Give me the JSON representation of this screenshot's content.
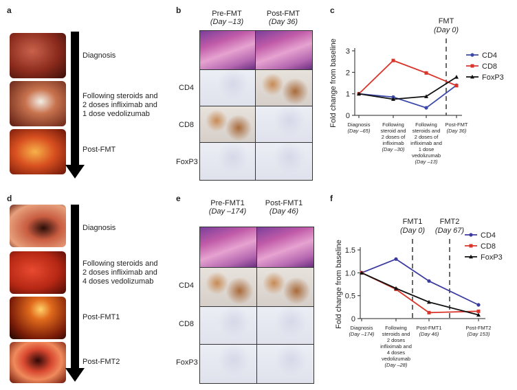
{
  "panels": {
    "a": "a",
    "b": "b",
    "c": "c",
    "d": "d",
    "e": "e",
    "f": "f"
  },
  "panel_a": {
    "labels": [
      "Diagnosis",
      "Following steroids and\n2 doses infliximab and\n1 dose vedolizumab",
      "Post-FMT"
    ]
  },
  "panel_d": {
    "labels": [
      "Diagnosis",
      "Following steroids and\n2 doses infliximab and\n4 doses vedolizumab",
      "Post-FMT1",
      "Post-FMT2"
    ]
  },
  "panel_b": {
    "col1": "Pre-FMT",
    "col1_day": "(Day –13)",
    "col2": "Post-FMT",
    "col2_day": "(Day 36)",
    "rows": [
      "CD4",
      "CD8",
      "FoxP3"
    ]
  },
  "panel_e": {
    "col1": "Pre-FMT1",
    "col1_day": "(Day –174)",
    "col2": "Post-FMT1",
    "col2_day": "(Day 46)",
    "rows": [
      "CD4",
      "CD8",
      "FoxP3"
    ]
  },
  "chart_data": [
    {
      "type": "line",
      "panel": "c",
      "ylabel": "Fold change from baseline",
      "ylim": [
        0,
        3
      ],
      "yticks": [
        "0",
        "1",
        "2",
        "3"
      ],
      "x_labels": [
        {
          "text": [
            "Diagnosis"
          ],
          "day": "(Day –65)"
        },
        {
          "text": [
            "Following",
            "steroid and",
            "2 doses of",
            "infliximab"
          ],
          "day": "(Day –30)"
        },
        {
          "text": [
            "Following",
            "steroids and",
            "2 doses of",
            "infliximab and",
            "1 dose",
            "vedolizumab"
          ],
          "day": "(Day –13)"
        },
        {
          "text": [
            "Post-FMT"
          ],
          "day": "(Day 36)"
        }
      ],
      "events": [
        {
          "label": "FMT",
          "day": "(Day 0)"
        }
      ],
      "series": [
        {
          "name": "CD4",
          "color": "#3b4aa8",
          "marker": "circle",
          "values": [
            1.0,
            0.85,
            0.35,
            1.4
          ]
        },
        {
          "name": "CD8",
          "color": "#d9352b",
          "marker": "square",
          "values": [
            1.0,
            2.55,
            1.97,
            1.38
          ]
        },
        {
          "name": "FoxP3",
          "color": "#111111",
          "marker": "triangle",
          "values": [
            1.0,
            0.75,
            0.88,
            1.78
          ]
        }
      ]
    },
    {
      "type": "line",
      "panel": "f",
      "ylabel": "Fold change from baseline",
      "ylim": [
        0,
        1.5
      ],
      "yticks": [
        "0",
        "0.5",
        "1.0",
        "1.5"
      ],
      "x_labels": [
        {
          "text": [
            "Diagnosis"
          ],
          "day": "(Day –174)"
        },
        {
          "text": [
            "Following",
            "steroids and",
            "2 doses",
            "infliximab and",
            "4 doses",
            "vedolizumab"
          ],
          "day": "(Day –28)"
        },
        {
          "text": [
            "Post-FMT1"
          ],
          "day": "(Day 46)"
        },
        {
          "text": [
            "Post-FMT2"
          ],
          "day": "(Day 153)"
        }
      ],
      "events": [
        {
          "label": "FMT1",
          "day": "(Day 0)"
        },
        {
          "label": "FMT2",
          "day": "(Day 67)"
        }
      ],
      "series": [
        {
          "name": "CD4",
          "color": "#3b3a9e",
          "marker": "circle",
          "values": [
            1.0,
            1.3,
            0.82,
            0.3
          ]
        },
        {
          "name": "CD8",
          "color": "#d9352b",
          "marker": "square",
          "values": [
            1.0,
            0.64,
            0.13,
            0.16
          ]
        },
        {
          "name": "FoxP3",
          "color": "#111111",
          "marker": "triangle",
          "values": [
            1.0,
            0.66,
            0.36,
            0.08
          ]
        }
      ]
    }
  ]
}
